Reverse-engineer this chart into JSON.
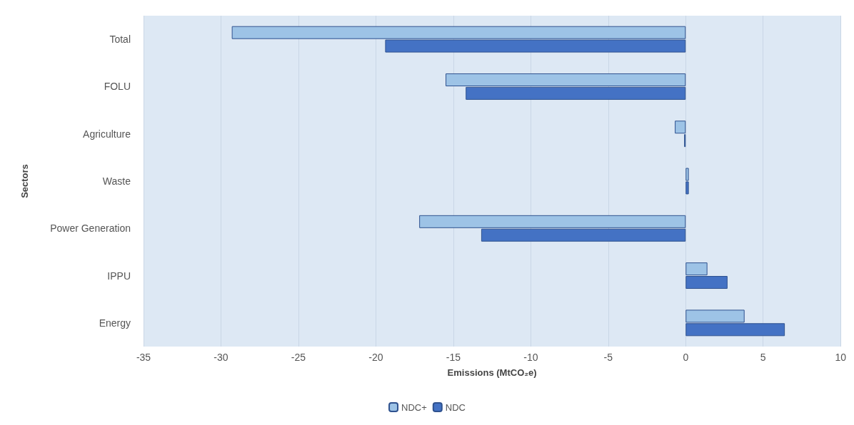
{
  "chart_data": {
    "type": "bar",
    "orientation": "horizontal",
    "xlabel": "Emissions (MtCO₂e)",
    "ylabel": "Sectors",
    "categories": [
      "Total",
      "FOLU",
      "Agriculture",
      "Waste",
      "Power Generation",
      "IPPU",
      "Energy"
    ],
    "series": [
      {
        "name": "NDC+",
        "color": "#9dc3e6",
        "values": [
          -29.3,
          -15.5,
          -0.7,
          0.2,
          -17.2,
          1.4,
          3.8
        ]
      },
      {
        "name": "NDC",
        "color": "#4472c4",
        "values": [
          -19.4,
          -14.2,
          -0.1,
          0.2,
          -13.2,
          2.7,
          6.4
        ]
      }
    ],
    "xlim": [
      -35,
      10
    ],
    "xticks": [
      -35,
      -30,
      -25,
      -20,
      -15,
      -10,
      -5,
      0,
      5,
      10
    ],
    "grid": "x",
    "legend": "bottom"
  }
}
